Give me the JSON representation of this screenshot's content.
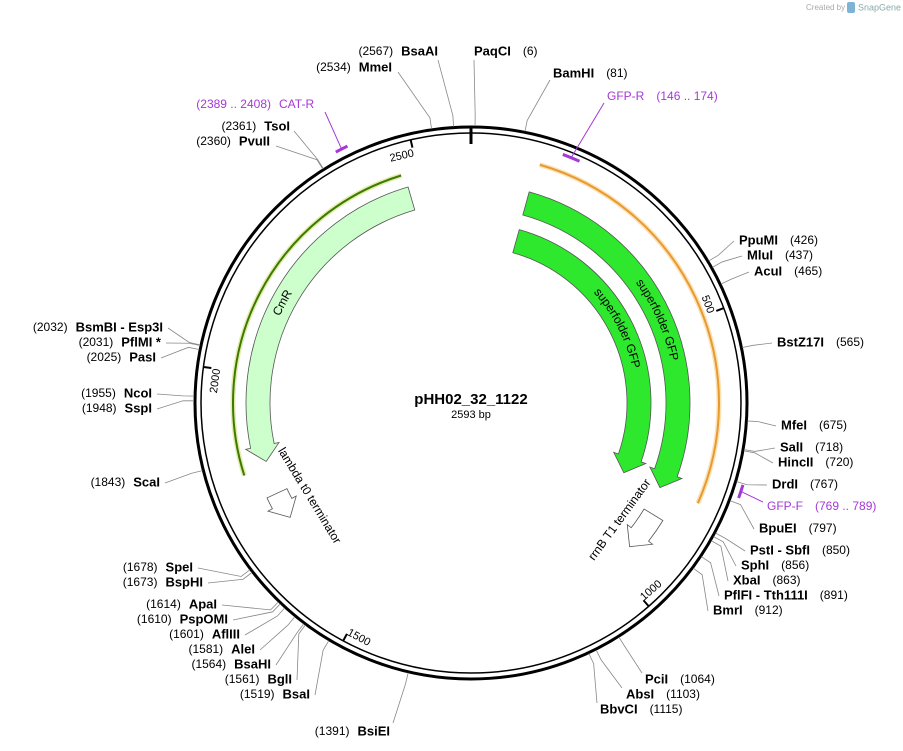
{
  "credit": {
    "prefix": "Created by",
    "brand": "SnapGene"
  },
  "plasmid": {
    "name": "pHH02_32_1122",
    "size_label": "2593 bp",
    "size": 2593
  },
  "ruler": [
    500,
    1000,
    1500,
    2000,
    2500
  ],
  "sites": [
    {
      "name": "BsaAI",
      "label": "(2567)",
      "bp": 2567
    },
    {
      "name": "PaqCI",
      "label": "(6)",
      "bp": 6
    },
    {
      "name": "MmeI",
      "label": "(2534)",
      "bp": 2534
    },
    {
      "name": "BamHI",
      "label": "(81)",
      "bp": 81
    },
    {
      "name": "TsoI",
      "label": "(2361)",
      "bp": 2361
    },
    {
      "name": "PvuII",
      "label": "(2360)",
      "bp": 2360
    },
    {
      "name": "PpuMI",
      "label": "(426)",
      "bp": 426
    },
    {
      "name": "MluI",
      "label": "(437)",
      "bp": 437
    },
    {
      "name": "AcuI",
      "label": "(465)",
      "bp": 465
    },
    {
      "name": "BstZ17I",
      "label": "(565)",
      "bp": 565
    },
    {
      "name": "MfeI",
      "label": "(675)",
      "bp": 675
    },
    {
      "name": "SalI",
      "label": "(718)",
      "bp": 718
    },
    {
      "name": "HincII",
      "label": "(720)",
      "bp": 720
    },
    {
      "name": "DrdI",
      "label": "(767)",
      "bp": 767
    },
    {
      "name": "BpuEI",
      "label": "(797)",
      "bp": 797
    },
    {
      "name": "PstI - SbfI",
      "label": "(850)",
      "bp": 850
    },
    {
      "name": "SphI",
      "label": "(856)",
      "bp": 856
    },
    {
      "name": "XbaI",
      "label": "(863)",
      "bp": 863
    },
    {
      "name": "PflFI - Tth111I",
      "label": "(891)",
      "bp": 891
    },
    {
      "name": "BmrI",
      "label": "(912)",
      "bp": 912
    },
    {
      "name": "PciI",
      "label": "(1064)",
      "bp": 1064
    },
    {
      "name": "AbsI",
      "label": "(1103)",
      "bp": 1103
    },
    {
      "name": "BbvCI",
      "label": "(1115)",
      "bp": 1115
    },
    {
      "name": "BsmBI - Esp3I",
      "label": "(2032)",
      "bp": 2032
    },
    {
      "name": "PflMI *",
      "label": "(2031)",
      "bp": 2031
    },
    {
      "name": "PasI",
      "label": "(2025)",
      "bp": 2025
    },
    {
      "name": "NcoI",
      "label": "(1955)",
      "bp": 1955
    },
    {
      "name": "SspI",
      "label": "(1948)",
      "bp": 1948
    },
    {
      "name": "ScaI",
      "label": "(1843)",
      "bp": 1843
    },
    {
      "name": "SpeI",
      "label": "(1678)",
      "bp": 1678
    },
    {
      "name": "BspHI",
      "label": "(1673)",
      "bp": 1673
    },
    {
      "name": "ApaI",
      "label": "(1614)",
      "bp": 1614
    },
    {
      "name": "PspOMI",
      "label": "(1610)",
      "bp": 1610
    },
    {
      "name": "AflIII",
      "label": "(1601)",
      "bp": 1601
    },
    {
      "name": "AleI",
      "label": "(1581)",
      "bp": 1581
    },
    {
      "name": "BsaHI",
      "label": "(1564)",
      "bp": 1564
    },
    {
      "name": "BglI",
      "label": "(1561)",
      "bp": 1561
    },
    {
      "name": "BsaI",
      "label": "(1519)",
      "bp": 1519
    },
    {
      "name": "BsiEI",
      "label": "(1391)",
      "bp": 1391
    }
  ],
  "primers": [
    {
      "name": "CAT-R",
      "label": "(2389 .. 2408)",
      "start": 2389,
      "end": 2408,
      "color": "#a638d6"
    },
    {
      "name": "GFP-R",
      "label": "(146 .. 174)",
      "start": 146,
      "end": 174,
      "color": "#a638d6"
    },
    {
      "name": "GFP-F",
      "label": "(769 .. 789)",
      "start": 769,
      "end": 789,
      "color": "#a638d6"
    }
  ],
  "features": [
    {
      "name": "CmR",
      "start": 1830,
      "end": 2476,
      "strand": -1,
      "color": "#ccffcc"
    },
    {
      "name": "lambda t0 terminator",
      "start": 1712,
      "end": 1765,
      "strand": -1,
      "color": "#ffffff"
    },
    {
      "name": "superfolder GFP",
      "start": 111,
      "end": 822,
      "strand": 1,
      "color": "#2ee82e"
    },
    {
      "name": "superfolder GFP",
      "start": 112,
      "end": 825,
      "strand": 1,
      "color": "#2ee82e"
    },
    {
      "name": "rrnB T1 terminator",
      "start": 875,
      "end": 952,
      "strand": 1,
      "color": "#ffffff"
    }
  ],
  "orfs": [
    {
      "start": 1817,
      "end": 2470,
      "strand": -1,
      "color": "#3d7a00"
    },
    {
      "start": 116,
      "end": 820,
      "strand": 1,
      "color": "#e89a2c"
    }
  ]
}
